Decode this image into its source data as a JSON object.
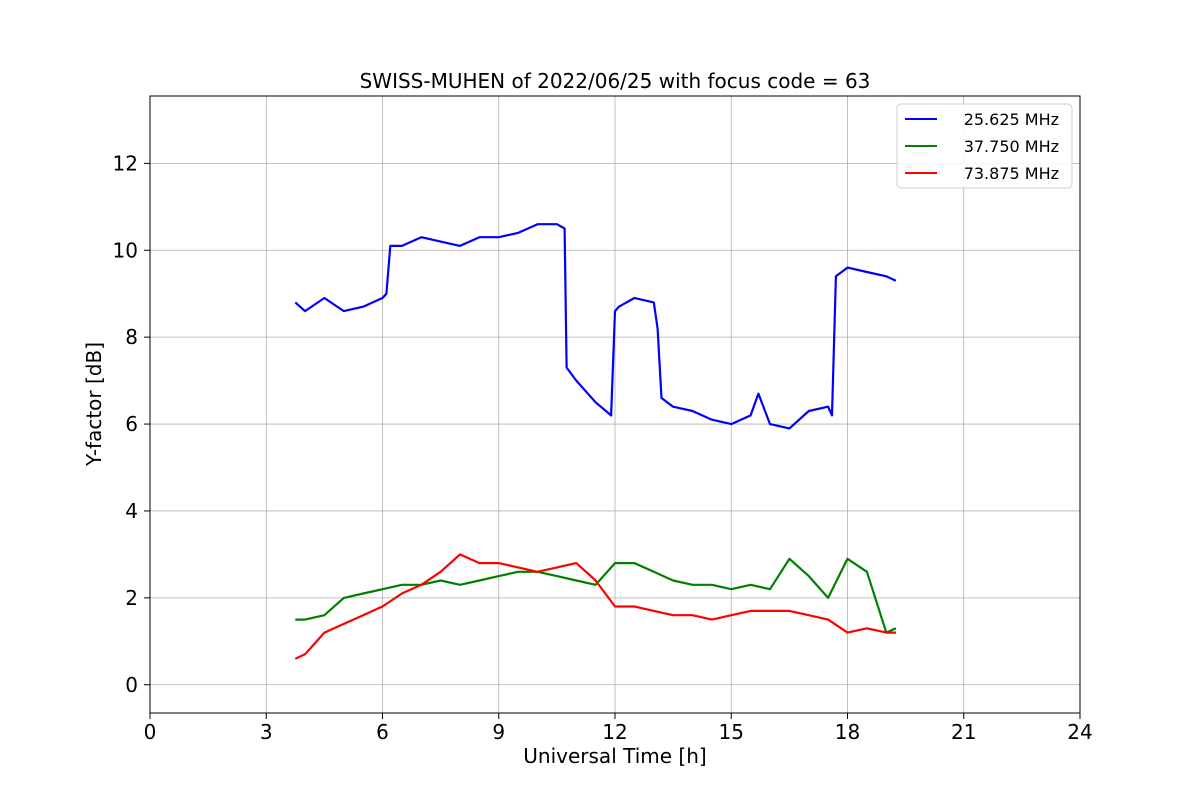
{
  "chart_data": {
    "type": "line",
    "title": "SWISS-MUHEN of 2022/06/25 with focus code = 63",
    "xlabel": "Universal Time [h]",
    "ylabel": "Y-factor [dB]",
    "xlim": [
      0,
      24
    ],
    "ylim": [
      -0.65,
      13.55
    ],
    "xticks": [
      0,
      3,
      6,
      9,
      12,
      15,
      18,
      21,
      24
    ],
    "yticks": [
      0,
      2,
      4,
      6,
      8,
      10,
      12
    ],
    "grid": true,
    "legend_position": "top-right",
    "series": [
      {
        "name": "25.625 MHz",
        "color": "#0000ff",
        "x": [
          3.75,
          4.0,
          4.5,
          5.0,
          5.5,
          6.0,
          6.1,
          6.2,
          6.5,
          7.0,
          7.5,
          8.0,
          8.5,
          9.0,
          9.5,
          10.0,
          10.5,
          10.7,
          10.75,
          11.0,
          11.5,
          11.9,
          12.0,
          12.1,
          12.5,
          13.0,
          13.1,
          13.2,
          13.5,
          14.0,
          14.5,
          15.0,
          15.5,
          15.7,
          16.0,
          16.5,
          17.0,
          17.5,
          17.6,
          17.7,
          18.0,
          18.5,
          19.0,
          19.25
        ],
        "y": [
          8.8,
          8.6,
          8.9,
          8.6,
          8.7,
          8.9,
          9.0,
          10.1,
          10.1,
          10.3,
          10.2,
          10.1,
          10.3,
          10.3,
          10.4,
          10.6,
          10.6,
          10.5,
          7.3,
          7.0,
          6.5,
          6.2,
          8.6,
          8.7,
          8.9,
          8.8,
          8.2,
          6.6,
          6.4,
          6.3,
          6.1,
          6.0,
          6.2,
          6.7,
          6.0,
          5.9,
          6.3,
          6.4,
          6.2,
          9.4,
          9.6,
          9.5,
          9.4,
          9.3
        ]
      },
      {
        "name": "37.750 MHz",
        "color": "#008000",
        "x": [
          3.75,
          4.0,
          4.5,
          5.0,
          5.5,
          6.0,
          6.5,
          7.0,
          7.5,
          8.0,
          8.5,
          9.0,
          9.5,
          10.0,
          10.5,
          11.0,
          11.5,
          12.0,
          12.5,
          13.0,
          13.5,
          14.0,
          14.5,
          15.0,
          15.5,
          16.0,
          16.5,
          17.0,
          17.5,
          18.0,
          18.5,
          19.0,
          19.25
        ],
        "y": [
          1.5,
          1.5,
          1.6,
          2.0,
          2.1,
          2.2,
          2.3,
          2.3,
          2.4,
          2.3,
          2.4,
          2.5,
          2.6,
          2.6,
          2.5,
          2.4,
          2.3,
          2.8,
          2.8,
          2.6,
          2.4,
          2.3,
          2.3,
          2.2,
          2.3,
          2.2,
          2.9,
          2.5,
          2.0,
          2.9,
          2.6,
          1.2,
          1.3
        ]
      },
      {
        "name": "73.875 MHz",
        "color": "#ff0000",
        "x": [
          3.75,
          4.0,
          4.5,
          5.0,
          5.5,
          6.0,
          6.5,
          7.0,
          7.5,
          8.0,
          8.5,
          9.0,
          9.5,
          10.0,
          10.5,
          11.0,
          11.5,
          12.0,
          12.5,
          13.0,
          13.5,
          14.0,
          14.5,
          15.0,
          15.5,
          16.0,
          16.5,
          17.0,
          17.5,
          18.0,
          18.5,
          19.0,
          19.25
        ],
        "y": [
          0.6,
          0.7,
          1.2,
          1.4,
          1.6,
          1.8,
          2.1,
          2.3,
          2.6,
          3.0,
          2.8,
          2.8,
          2.7,
          2.6,
          2.7,
          2.8,
          2.4,
          1.8,
          1.8,
          1.7,
          1.6,
          1.6,
          1.5,
          1.6,
          1.7,
          1.7,
          1.7,
          1.6,
          1.5,
          1.2,
          1.3,
          1.2,
          1.2
        ]
      }
    ]
  }
}
